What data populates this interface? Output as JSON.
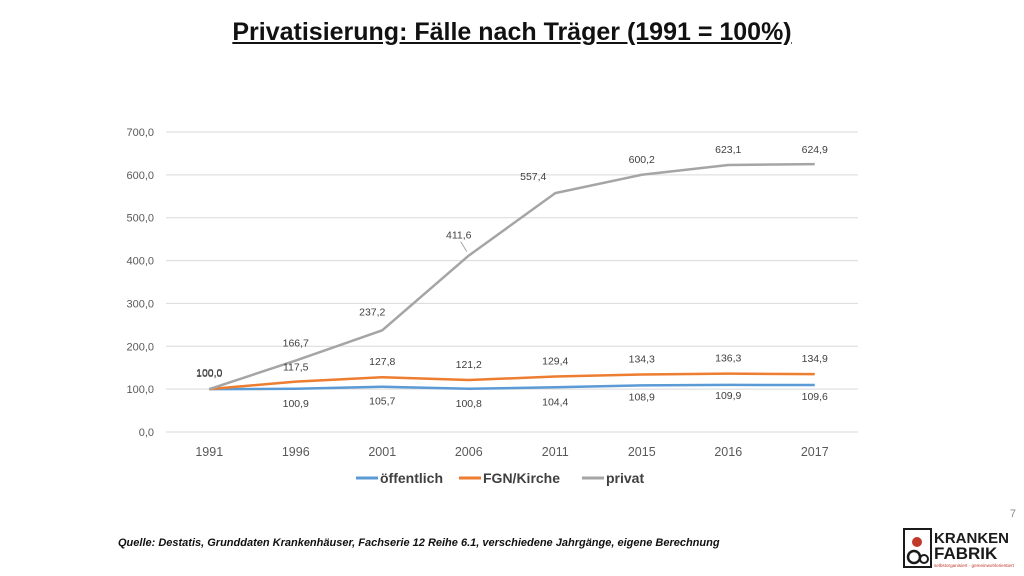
{
  "title": "Privatisierung: Fälle nach Träger (1991 = 100%)",
  "chart_data": {
    "type": "line",
    "categories": [
      "1991",
      "1996",
      "2001",
      "2006",
      "2011",
      "2015",
      "2016",
      "2017"
    ],
    "series": [
      {
        "name": "öffentlich",
        "color": "#5B9BD5",
        "values": [
          100.0,
          100.9,
          105.7,
          100.8,
          104.4,
          108.9,
          109.9,
          109.6
        ]
      },
      {
        "name": "FGN/Kirche",
        "color": "#ED7D31",
        "values": [
          100.0,
          117.5,
          127.8,
          121.2,
          129.4,
          134.3,
          136.3,
          134.9
        ]
      },
      {
        "name": "privat",
        "color": "#A5A5A5",
        "values": [
          100.0,
          166.7,
          237.2,
          411.6,
          557.4,
          600.2,
          623.1,
          624.9
        ]
      }
    ],
    "ylim": [
      0,
      700
    ],
    "yticks": [
      "0,0",
      "100,0",
      "200,0",
      "300,0",
      "400,0",
      "500,0",
      "600,0",
      "700,0"
    ],
    "data_labels": {
      "öffentlich": [
        "",
        "100,9",
        "105,7",
        "100,8",
        "104,4",
        "108,9",
        "109,9",
        "109,6"
      ],
      "FGN/Kirche": [
        "100,0",
        "117,5",
        "127,8",
        "121,2",
        "129,4",
        "134,3",
        "136,3",
        "134,9"
      ],
      "privat": [
        "100,0",
        "166,7",
        "237,2",
        "411,6",
        "557,4",
        "600,2",
        "623,1",
        "624,9"
      ]
    },
    "grid": true,
    "legend": "bottom"
  },
  "page_number": "7",
  "source": "Quelle: Destatis, Grunddaten Krankenhäuser, Fachserie 12 Reihe 6.1, verschiedene Jahrgänge, eigene Berechnung",
  "logo": {
    "line1": "KRANKEN",
    "line2": "FABRIK",
    "tagline": "selbstorganisiert · gemeinwohlorientiert"
  }
}
